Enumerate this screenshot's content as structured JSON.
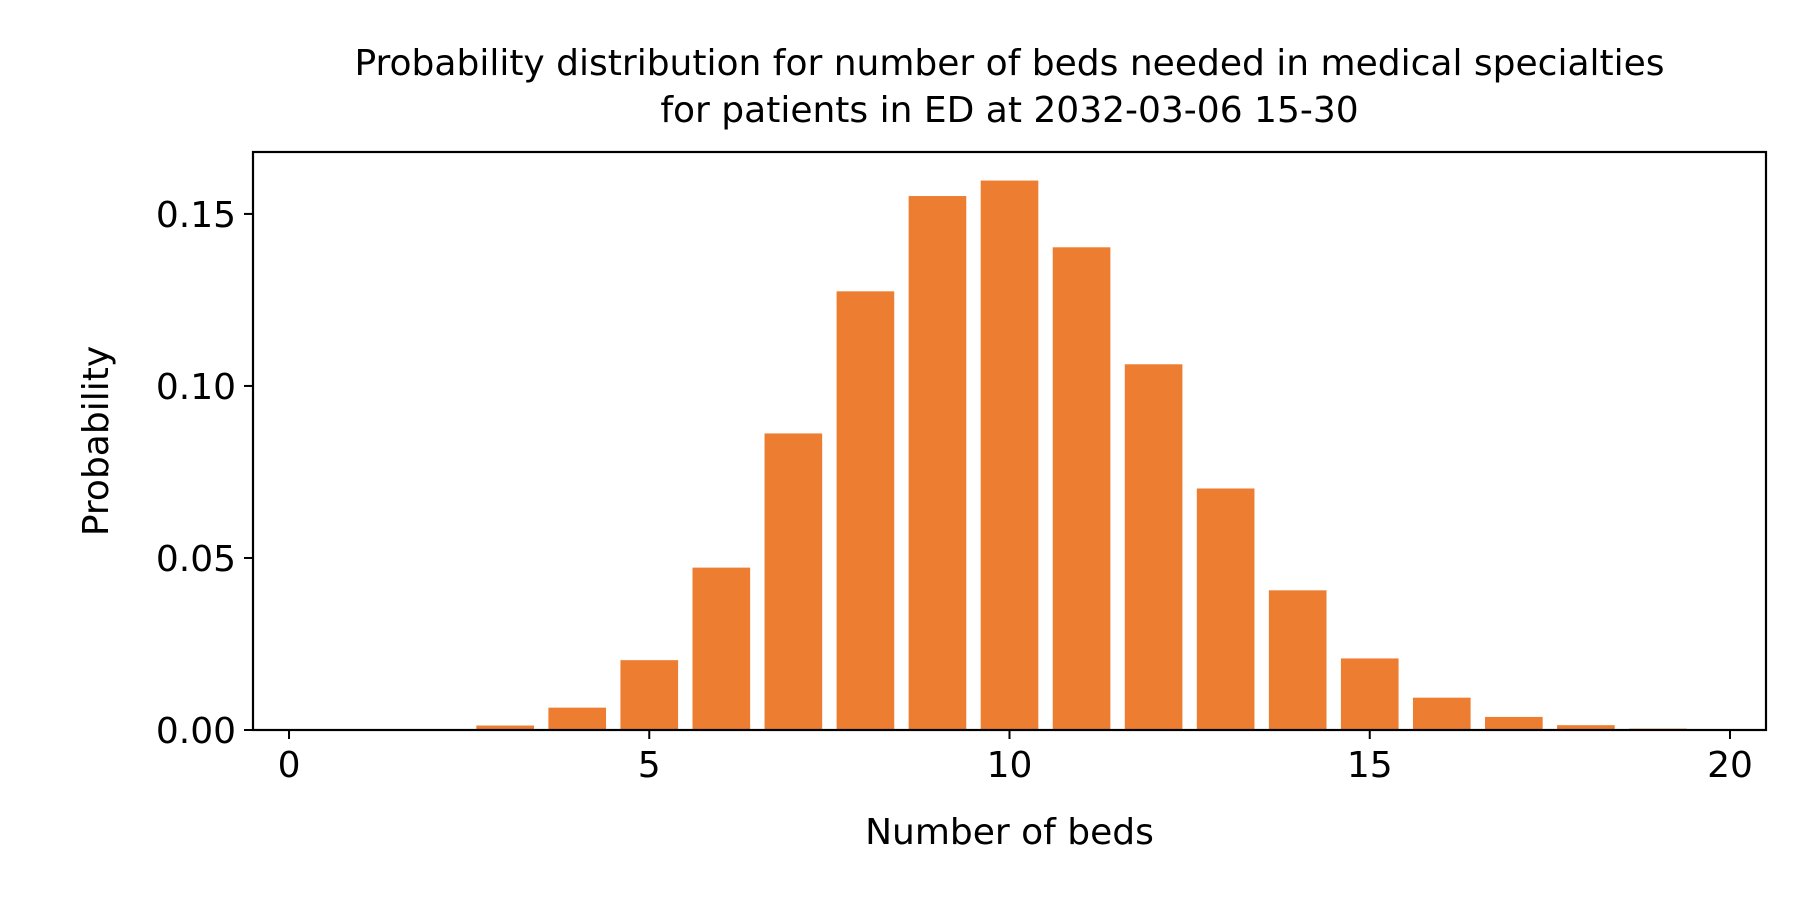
{
  "chart_data": {
    "type": "bar",
    "title_lines": [
      "Probability distribution for number of beds needed in medical specialties",
      "for patients in ED at 2032-03-06 15-30"
    ],
    "xlabel": "Number of beds",
    "ylabel": "Probability",
    "x": [
      0,
      1,
      2,
      3,
      4,
      5,
      6,
      7,
      8,
      9,
      10,
      11,
      12,
      13,
      14,
      15,
      16,
      17,
      18,
      19,
      20
    ],
    "values": [
      0,
      0,
      0,
      0.0013,
      0.0065,
      0.0203,
      0.0472,
      0.0862,
      0.1275,
      0.1552,
      0.1597,
      0.1403,
      0.1063,
      0.0702,
      0.0406,
      0.0208,
      0.0094,
      0.0038,
      0.0014,
      0.0004,
      0.0001
    ],
    "xlim": [
      -0.5,
      20.5
    ],
    "ylim": [
      0,
      0.168
    ],
    "xticks": [
      0,
      5,
      10,
      15,
      20
    ],
    "xtick_labels": [
      "0",
      "5",
      "10",
      "15",
      "20"
    ],
    "yticks": [
      0,
      0.05,
      0.1,
      0.15
    ],
    "ytick_labels": [
      "0.00",
      "0.05",
      "0.10",
      "0.15"
    ],
    "bar_color": "#ed7d31",
    "grid": false
  }
}
